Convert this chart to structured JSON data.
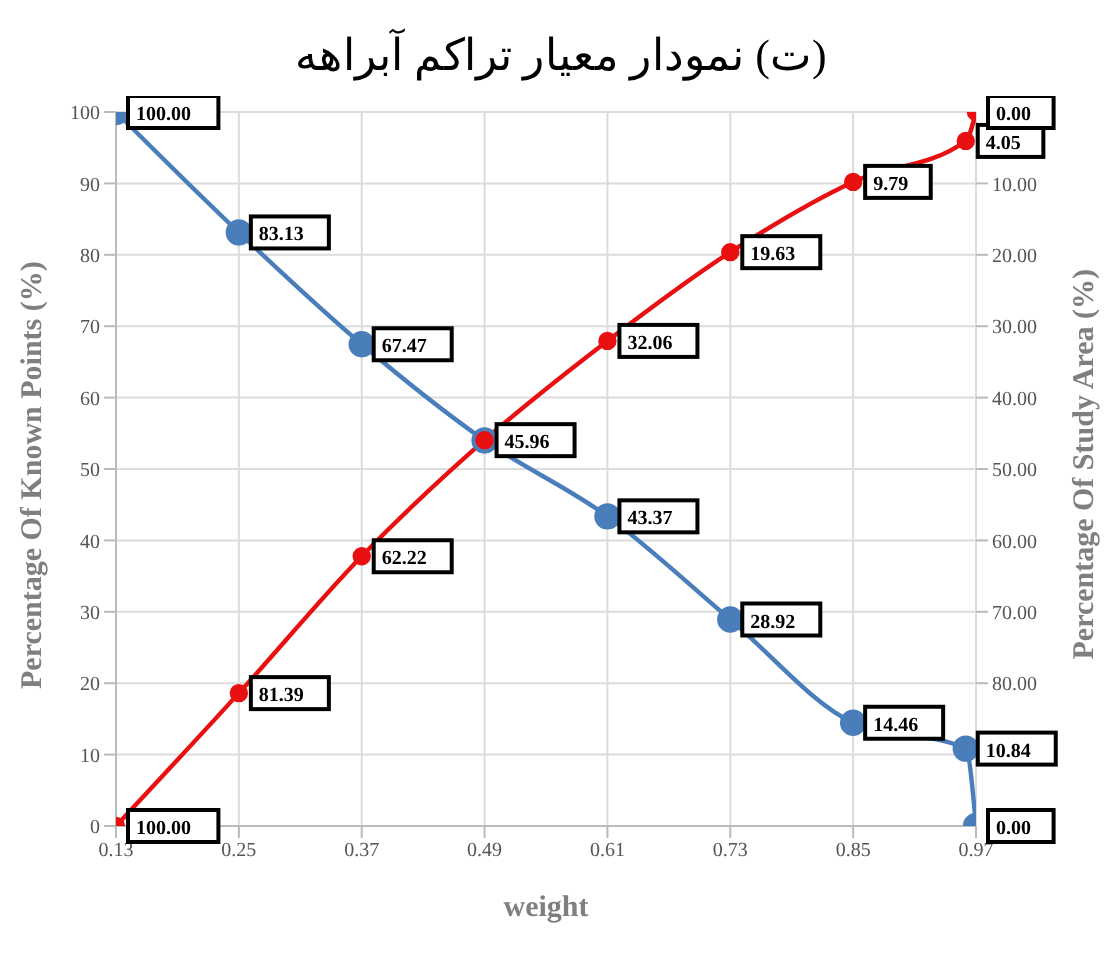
{
  "chart_data": {
    "type": "line",
    "title": "(ت) نمودار معیار تراکم آبراهه",
    "xlabel": "weight",
    "ylabel": "Percentage Of Known Points (%)",
    "y2label": "Percentage Of Study Area (%)",
    "x": [
      0.13,
      0.25,
      0.37,
      0.49,
      0.61,
      0.73,
      0.85,
      0.96,
      0.97
    ],
    "series": [
      {
        "color": "#4a7ebb",
        "values": [
          100,
          83.13,
          67.47,
          54,
          43.37,
          28.92,
          14.46,
          10.84,
          0
        ],
        "value_labels": [
          "100.00",
          "83.13",
          "67.47",
          null,
          "43.37",
          "28.92",
          "14.46",
          "10.84",
          "0.00"
        ]
      },
      {
        "color": "#e81010",
        "axis": "y2",
        "values": [
          100,
          81.39,
          62.22,
          45.96,
          32.06,
          19.63,
          9.79,
          4.05,
          0
        ],
        "value_labels": [
          "100.00",
          "81.39",
          "62.22",
          "45.96",
          "32.06",
          "19.63",
          "9.79",
          "4.05",
          "0.00"
        ]
      }
    ],
    "xlim": [
      0.13,
      0.97
    ],
    "xticks": [
      0.13,
      0.25,
      0.37,
      0.49,
      0.61,
      0.73,
      0.85,
      0.97
    ],
    "ylim": [
      0,
      100
    ],
    "yticks": [
      0,
      10,
      20,
      30,
      40,
      50,
      60,
      70,
      80,
      90,
      100
    ],
    "y2lim": [
      100,
      0
    ],
    "y2ticks": [
      {
        "value": 10,
        "label": "10.00"
      },
      {
        "value": 20,
        "label": "20.00"
      },
      {
        "value": 30,
        "label": "30.00"
      },
      {
        "value": 40,
        "label": "40.00"
      },
      {
        "value": 50,
        "label": "50.00"
      },
      {
        "value": 60,
        "label": "60.00"
      },
      {
        "value": 70,
        "label": "70.00"
      },
      {
        "value": 80,
        "label": "80.00"
      },
      {
        "value": 90,
        "label": null
      }
    ],
    "grid": true,
    "legend": false,
    "marker": "circle",
    "line_style": "solid"
  }
}
